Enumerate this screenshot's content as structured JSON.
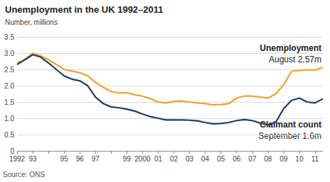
{
  "chart_data": {
    "type": "line",
    "title": "Unemployment in the UK 1992–2011",
    "subtitle": "Number, millions",
    "source": "Source: ONS",
    "categories": [
      "1992",
      null,
      "93",
      null,
      null,
      null,
      "95",
      null,
      "96",
      null,
      "97",
      null,
      null,
      null,
      "99",
      null,
      "2000",
      null,
      "01",
      null,
      "02",
      null,
      "03",
      null,
      "04",
      null,
      "05",
      null,
      "06",
      null,
      "07",
      null,
      "08",
      null,
      "09",
      null,
      "10",
      null,
      "11",
      null
    ],
    "series": [
      {
        "name": "Unemployment",
        "color": "#f0a232",
        "values": [
          2.7,
          2.8,
          3.0,
          2.92,
          2.8,
          2.65,
          2.5,
          2.45,
          2.4,
          2.3,
          2.1,
          1.95,
          1.82,
          1.78,
          1.78,
          1.72,
          1.68,
          1.6,
          1.5,
          1.47,
          1.52,
          1.53,
          1.5,
          1.47,
          1.45,
          1.41,
          1.42,
          1.45,
          1.62,
          1.68,
          1.68,
          1.65,
          1.62,
          1.75,
          2.03,
          2.44,
          2.47,
          2.48,
          2.48,
          2.57
        ]
      },
      {
        "name": "Claimant count",
        "color": "#1d3d5c",
        "values": [
          2.65,
          2.8,
          2.95,
          2.88,
          2.7,
          2.5,
          2.3,
          2.2,
          2.15,
          2.0,
          1.65,
          1.45,
          1.35,
          1.32,
          1.28,
          1.22,
          1.13,
          1.05,
          1.0,
          0.95,
          0.95,
          0.95,
          0.94,
          0.92,
          0.87,
          0.83,
          0.84,
          0.87,
          0.93,
          0.96,
          0.93,
          0.85,
          0.8,
          0.88,
          1.3,
          1.55,
          1.62,
          1.5,
          1.47,
          1.6
        ]
      }
    ],
    "annotations": [
      {
        "series": "Unemployment",
        "text": "August 2.57m"
      },
      {
        "series": "Claimant count",
        "text": "September 1.6m"
      }
    ],
    "ylim": [
      0,
      3.5
    ],
    "yticks": [
      0,
      0.5,
      {
        "value": 1,
        "label": "1.0"
      },
      1.5,
      {
        "value": 2,
        "label": "2.0"
      },
      2.5,
      {
        "value": 3,
        "label": "3.0"
      },
      3.5
    ],
    "grid": true
  }
}
